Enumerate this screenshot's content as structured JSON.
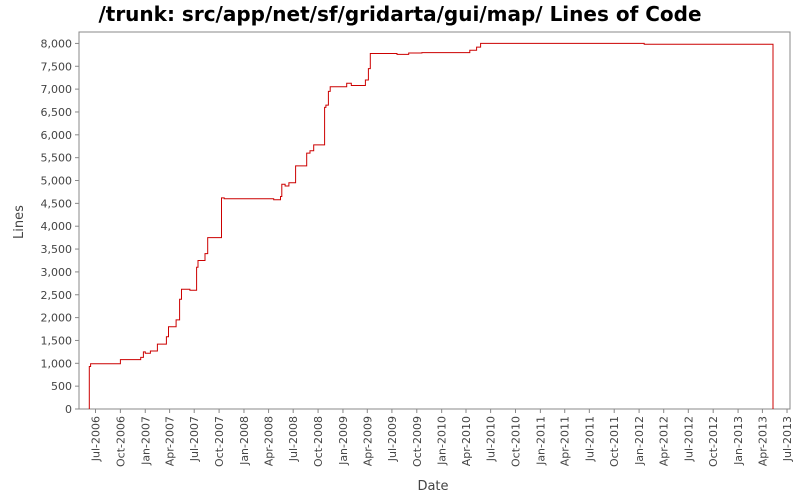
{
  "chart_data": {
    "type": "line",
    "title": "/trunk: src/app/net/sf/gridarta/gui/map/ Lines of Code",
    "xlabel": "Date",
    "ylabel": "Lines",
    "ylim": [
      0,
      8250
    ],
    "xlim": [
      "2006-05-01",
      "2013-07-12"
    ],
    "y_ticks": [
      0,
      500,
      1000,
      1500,
      2000,
      2500,
      3000,
      3500,
      4000,
      4500,
      5000,
      5500,
      6000,
      6500,
      7000,
      7500,
      8000
    ],
    "y_tick_labels": [
      "0",
      "500",
      "1,000",
      "1,500",
      "2,000",
      "2,500",
      "3,000",
      "3,500",
      "4,000",
      "4,500",
      "5,000",
      "5,500",
      "6,000",
      "6,500",
      "7,000",
      "7,500",
      "8,000"
    ],
    "x_ticks": [
      "2006-07-01",
      "2006-10-01",
      "2007-01-01",
      "2007-04-01",
      "2007-07-01",
      "2007-10-01",
      "2008-01-01",
      "2008-04-01",
      "2008-07-01",
      "2008-10-01",
      "2009-01-01",
      "2009-04-01",
      "2009-07-01",
      "2009-10-01",
      "2010-01-01",
      "2010-04-01",
      "2010-07-01",
      "2010-10-01",
      "2011-01-01",
      "2011-04-01",
      "2011-07-01",
      "2011-10-01",
      "2012-01-01",
      "2012-04-01",
      "2012-07-01",
      "2012-10-01",
      "2013-01-01",
      "2013-04-01",
      "2013-07-01"
    ],
    "x_tick_labels": [
      "Jul-2006",
      "Oct-2006",
      "Jan-2007",
      "Apr-2007",
      "Jul-2007",
      "Oct-2007",
      "Jan-2008",
      "Apr-2008",
      "Jul-2008",
      "Oct-2008",
      "Jan-2009",
      "Apr-2009",
      "Jul-2009",
      "Oct-2009",
      "Jan-2010",
      "Apr-2010",
      "Jul-2010",
      "Oct-2010",
      "Jan-2011",
      "Apr-2011",
      "Jul-2011",
      "Oct-2011",
      "Jan-2012",
      "Apr-2012",
      "Jul-2012",
      "Oct-2012",
      "Jan-2013",
      "Apr-2013",
      "Jul-2013"
    ],
    "grid": false,
    "line_color": "#cc0000",
    "series": [
      {
        "points": [
          [
            "2006-06-08",
            0
          ],
          [
            "2006-06-08",
            930
          ],
          [
            "2006-06-13",
            930
          ],
          [
            "2006-06-13",
            990
          ],
          [
            "2006-10-01",
            990
          ],
          [
            "2006-10-01",
            1080
          ],
          [
            "2006-12-15",
            1080
          ],
          [
            "2006-12-15",
            1130
          ],
          [
            "2006-12-25",
            1130
          ],
          [
            "2006-12-25",
            1250
          ],
          [
            "2007-01-01",
            1250
          ],
          [
            "2007-01-01",
            1220
          ],
          [
            "2007-01-20",
            1220
          ],
          [
            "2007-01-20",
            1270
          ],
          [
            "2007-02-15",
            1270
          ],
          [
            "2007-02-15",
            1420
          ],
          [
            "2007-03-20",
            1420
          ],
          [
            "2007-03-20",
            1580
          ],
          [
            "2007-03-28",
            1580
          ],
          [
            "2007-03-28",
            1800
          ],
          [
            "2007-04-25",
            1800
          ],
          [
            "2007-04-25",
            1950
          ],
          [
            "2007-05-08",
            1950
          ],
          [
            "2007-05-08",
            2400
          ],
          [
            "2007-05-15",
            2400
          ],
          [
            "2007-05-15",
            2620
          ],
          [
            "2007-06-15",
            2620
          ],
          [
            "2007-06-15",
            2600
          ],
          [
            "2007-07-10",
            2600
          ],
          [
            "2007-07-10",
            3100
          ],
          [
            "2007-07-15",
            3100
          ],
          [
            "2007-07-15",
            3250
          ],
          [
            "2007-08-10",
            3250
          ],
          [
            "2007-08-10",
            3400
          ],
          [
            "2007-08-20",
            3400
          ],
          [
            "2007-08-20",
            3750
          ],
          [
            "2007-10-10",
            3750
          ],
          [
            "2007-10-10",
            4620
          ],
          [
            "2007-10-20",
            4620
          ],
          [
            "2007-10-20",
            4600
          ],
          [
            "2008-04-20",
            4600
          ],
          [
            "2008-04-20",
            4580
          ],
          [
            "2008-05-15",
            4580
          ],
          [
            "2008-05-15",
            4650
          ],
          [
            "2008-05-20",
            4650
          ],
          [
            "2008-05-20",
            4920
          ],
          [
            "2008-06-01",
            4920
          ],
          [
            "2008-06-01",
            4880
          ],
          [
            "2008-06-15",
            4880
          ],
          [
            "2008-06-15",
            4950
          ],
          [
            "2008-07-10",
            4950
          ],
          [
            "2008-07-10",
            5320
          ],
          [
            "2008-08-20",
            5320
          ],
          [
            "2008-08-20",
            5600
          ],
          [
            "2008-09-01",
            5600
          ],
          [
            "2008-09-01",
            5650
          ],
          [
            "2008-09-15",
            5650
          ],
          [
            "2008-09-15",
            5780
          ],
          [
            "2008-10-25",
            5780
          ],
          [
            "2008-10-25",
            6600
          ],
          [
            "2008-10-30",
            6600
          ],
          [
            "2008-10-30",
            6650
          ],
          [
            "2008-11-08",
            6650
          ],
          [
            "2008-11-08",
            6950
          ],
          [
            "2008-11-15",
            6950
          ],
          [
            "2008-11-15",
            7050
          ],
          [
            "2009-01-15",
            7050
          ],
          [
            "2009-01-15",
            7130
          ],
          [
            "2009-02-01",
            7130
          ],
          [
            "2009-02-01",
            7080
          ],
          [
            "2009-03-25",
            7080
          ],
          [
            "2009-03-25",
            7200
          ],
          [
            "2009-04-05",
            7200
          ],
          [
            "2009-04-05",
            7450
          ],
          [
            "2009-04-12",
            7450
          ],
          [
            "2009-04-12",
            7780
          ],
          [
            "2009-07-20",
            7780
          ],
          [
            "2009-07-20",
            7760
          ],
          [
            "2009-09-01",
            7760
          ],
          [
            "2009-09-01",
            7790
          ],
          [
            "2009-10-20",
            7790
          ],
          [
            "2009-10-20",
            7800
          ],
          [
            "2010-04-15",
            7800
          ],
          [
            "2010-04-15",
            7850
          ],
          [
            "2010-05-10",
            7850
          ],
          [
            "2010-05-10",
            7920
          ],
          [
            "2010-05-25",
            7920
          ],
          [
            "2010-05-25",
            8000
          ],
          [
            "2012-01-20",
            8000
          ],
          [
            "2012-01-20",
            7980
          ],
          [
            "2013-05-10",
            7980
          ],
          [
            "2013-05-10",
            0
          ]
        ]
      }
    ]
  }
}
